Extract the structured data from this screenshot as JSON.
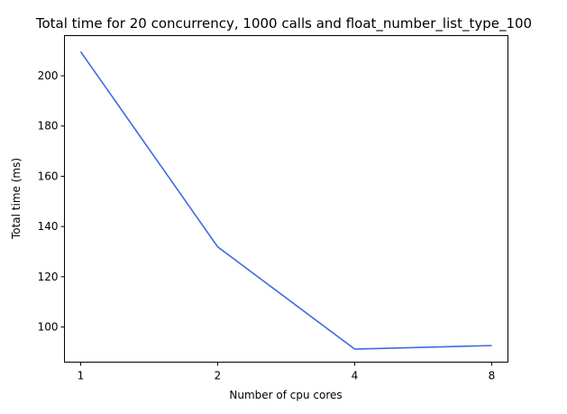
{
  "chart_data": {
    "type": "line",
    "title": "Total time for 20 concurrency, 1000 calls and float_number_list_type_100",
    "xlabel": "Number of cpu cores",
    "ylabel": "Total time (ms)",
    "categories": [
      "1",
      "2",
      "4",
      "8"
    ],
    "series": [
      {
        "values": [
          209.6,
          131.9,
          91.2,
          92.6
        ],
        "color": "#4169e1"
      }
    ],
    "ylim": [
      86.0,
      216.0
    ],
    "yticks": [
      100,
      120,
      140,
      160,
      180,
      200
    ],
    "grid": false,
    "legend": "none"
  }
}
